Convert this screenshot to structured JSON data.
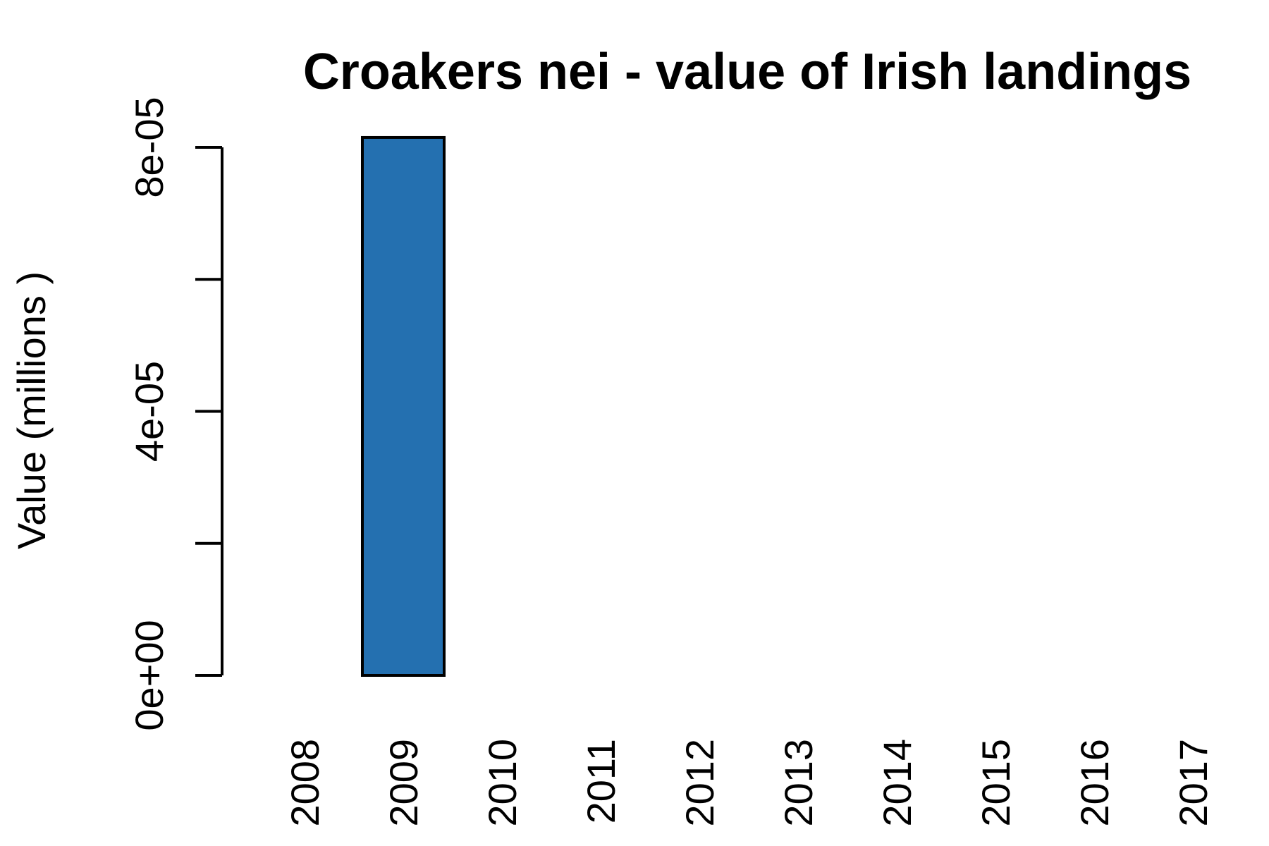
{
  "chart_data": {
    "type": "bar",
    "title": "Croakers nei - value of Irish landings",
    "xlabel": "",
    "ylabel": "Value (millions )",
    "categories": [
      "2008",
      "2009",
      "2010",
      "2011",
      "2012",
      "2013",
      "2014",
      "2015",
      "2016",
      "2017"
    ],
    "values": [
      0,
      8.15e-05,
      0,
      0,
      0,
      0,
      0,
      0,
      0,
      0
    ],
    "ylim": [
      0,
      8e-05
    ],
    "y_ticks": [
      0,
      2e-05,
      4e-05,
      6e-05,
      8e-05
    ],
    "y_tick_labels": [
      "0e+00",
      "",
      "4e-05",
      "",
      "8e-05"
    ],
    "bar_color": "#2470b0",
    "grid": false,
    "legend": "none"
  }
}
